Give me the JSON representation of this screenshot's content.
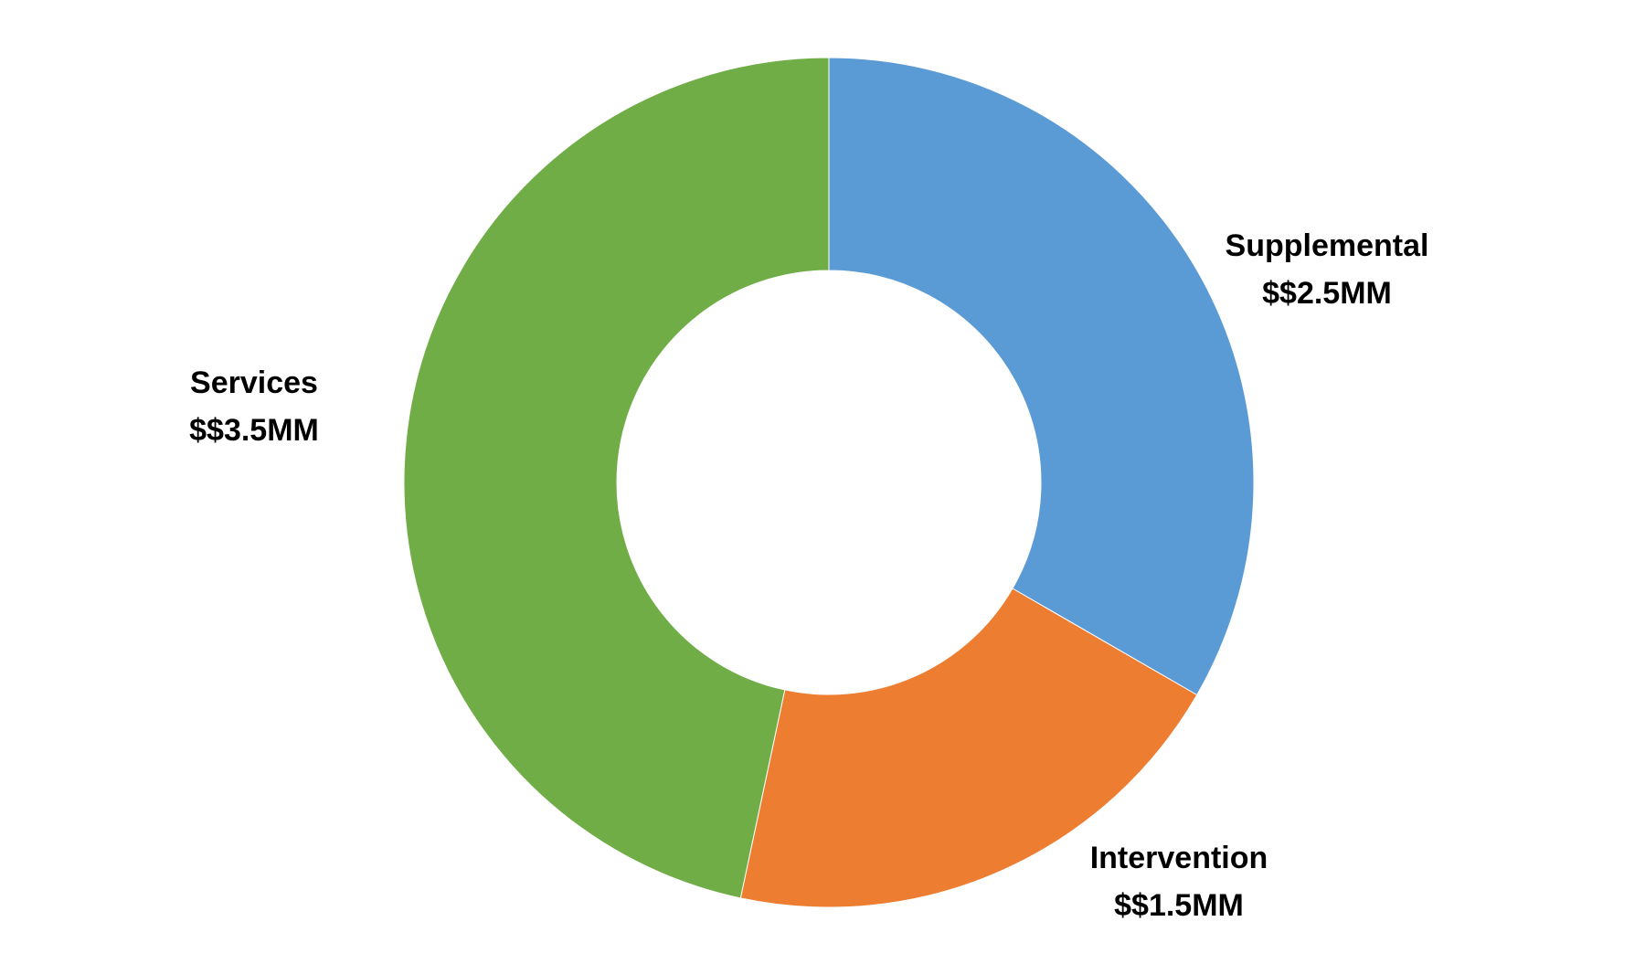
{
  "chart_data": {
    "type": "pie",
    "variant": "donut",
    "categories": [
      "Supplemental",
      "Intervention",
      "Services"
    ],
    "values": [
      2.5,
      1.5,
      3.5
    ],
    "value_labels": [
      "$$2.5MM",
      "$$1.5MM",
      "$$3.5MM"
    ],
    "colors": [
      "#5B9BD5",
      "#ED7D31",
      "#70AD47"
    ],
    "unit": "MM",
    "title": "",
    "legend": "none",
    "start_angle_deg": 0,
    "direction": "clockwise"
  }
}
